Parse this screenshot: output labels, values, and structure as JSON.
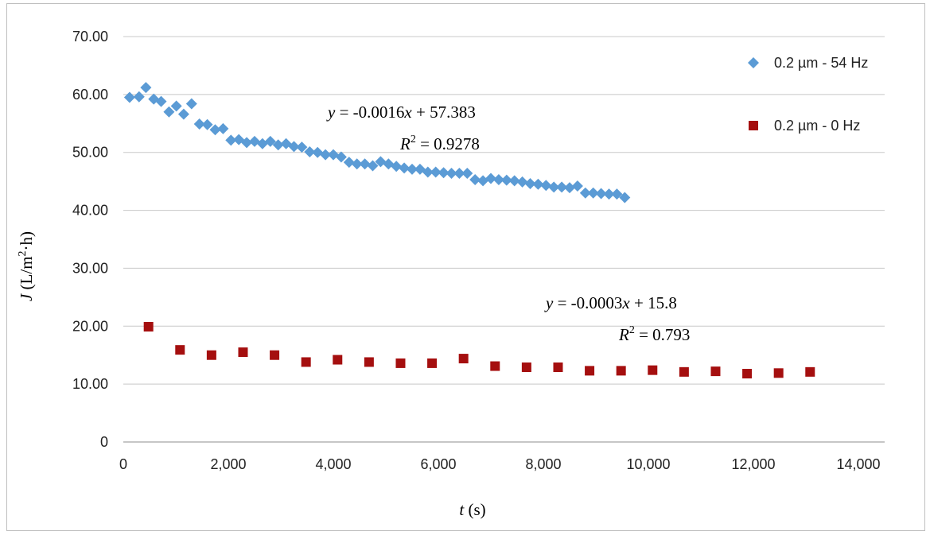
{
  "chart_data": {
    "type": "scatter",
    "xlabel": {
      "var": "t",
      "unit": " (s)"
    },
    "ylabel": {
      "var": "J",
      "unit_pre": " (L/m",
      "unit_sup": "2",
      "unit_post": "·h)"
    },
    "xlim": [
      0,
      14500
    ],
    "ylim": [
      0,
      70
    ],
    "x_ticks": [
      0,
      2000,
      4000,
      6000,
      8000,
      10000,
      12000,
      14000
    ],
    "x_tick_labels": [
      "0",
      "2,000",
      "4,000",
      "6,000",
      "8,000",
      "10,000",
      "12,000",
      "14,000"
    ],
    "y_ticks": [
      0,
      10,
      20,
      30,
      40,
      50,
      60,
      70
    ],
    "y_tick_labels": [
      "0",
      "10.00",
      "20.00",
      "30.00",
      "40.00",
      "50.00",
      "60.00",
      "70.00"
    ],
    "grid": "horizontal",
    "legend_position": "right",
    "series": [
      {
        "name": "0.2 µm - 54 Hz",
        "marker": "diamond",
        "color": "#5b9bd5",
        "trendline": {
          "prefix": "y = -0.0016",
          "var": "x",
          "rest": " + 57.383",
          "r2_label": "R",
          "r2_sup": "2",
          "r2_value": " = 0.9278"
        },
        "points": [
          [
            120,
            59.5
          ],
          [
            300,
            59.6
          ],
          [
            430,
            61.2
          ],
          [
            580,
            59.2
          ],
          [
            720,
            58.8
          ],
          [
            870,
            57.0
          ],
          [
            1010,
            58.0
          ],
          [
            1150,
            56.6
          ],
          [
            1300,
            58.4
          ],
          [
            1450,
            54.9
          ],
          [
            1600,
            54.8
          ],
          [
            1750,
            53.9
          ],
          [
            1900,
            54.1
          ],
          [
            2050,
            52.1
          ],
          [
            2200,
            52.2
          ],
          [
            2350,
            51.7
          ],
          [
            2500,
            51.9
          ],
          [
            2650,
            51.5
          ],
          [
            2800,
            51.9
          ],
          [
            2950,
            51.3
          ],
          [
            3100,
            51.5
          ],
          [
            3250,
            51.0
          ],
          [
            3400,
            50.9
          ],
          [
            3550,
            50.1
          ],
          [
            3700,
            50.0
          ],
          [
            3850,
            49.6
          ],
          [
            4000,
            49.6
          ],
          [
            4150,
            49.2
          ],
          [
            4300,
            48.3
          ],
          [
            4450,
            48.0
          ],
          [
            4600,
            48.0
          ],
          [
            4750,
            47.7
          ],
          [
            4900,
            48.4
          ],
          [
            5050,
            48.0
          ],
          [
            5200,
            47.6
          ],
          [
            5350,
            47.3
          ],
          [
            5500,
            47.1
          ],
          [
            5650,
            47.1
          ],
          [
            5800,
            46.6
          ],
          [
            5950,
            46.6
          ],
          [
            6100,
            46.5
          ],
          [
            6250,
            46.4
          ],
          [
            6400,
            46.4
          ],
          [
            6550,
            46.4
          ],
          [
            6700,
            45.3
          ],
          [
            6850,
            45.1
          ],
          [
            7000,
            45.5
          ],
          [
            7150,
            45.3
          ],
          [
            7300,
            45.2
          ],
          [
            7450,
            45.1
          ],
          [
            7600,
            44.9
          ],
          [
            7750,
            44.6
          ],
          [
            7900,
            44.5
          ],
          [
            8050,
            44.3
          ],
          [
            8200,
            44.0
          ],
          [
            8350,
            44.0
          ],
          [
            8500,
            43.9
          ],
          [
            8650,
            44.2
          ],
          [
            8800,
            43.0
          ],
          [
            8950,
            43.0
          ],
          [
            9100,
            42.9
          ],
          [
            9250,
            42.8
          ],
          [
            9400,
            42.8
          ],
          [
            9550,
            42.2
          ]
        ]
      },
      {
        "name": "0.2 µm - 0 Hz",
        "marker": "square",
        "color": "#a50f0f",
        "trendline": {
          "prefix": "y = -0.0003",
          "var": "x",
          "rest": " + 15.8",
          "r2_label": "R",
          "r2_sup": "2",
          "r2_value": " = 0.793"
        },
        "points": [
          [
            480,
            19.9
          ],
          [
            1080,
            15.9
          ],
          [
            1680,
            15.0
          ],
          [
            2280,
            15.5
          ],
          [
            2880,
            15.0
          ],
          [
            3480,
            13.8
          ],
          [
            4080,
            14.2
          ],
          [
            4680,
            13.8
          ],
          [
            5280,
            13.6
          ],
          [
            5880,
            13.6
          ],
          [
            6480,
            14.4
          ],
          [
            7080,
            13.1
          ],
          [
            7680,
            12.9
          ],
          [
            8280,
            12.9
          ],
          [
            8880,
            12.3
          ],
          [
            9480,
            12.3
          ],
          [
            10080,
            12.4
          ],
          [
            10680,
            12.1
          ],
          [
            11280,
            12.2
          ],
          [
            11880,
            11.8
          ],
          [
            12480,
            11.9
          ],
          [
            13080,
            12.1
          ]
        ]
      }
    ]
  }
}
